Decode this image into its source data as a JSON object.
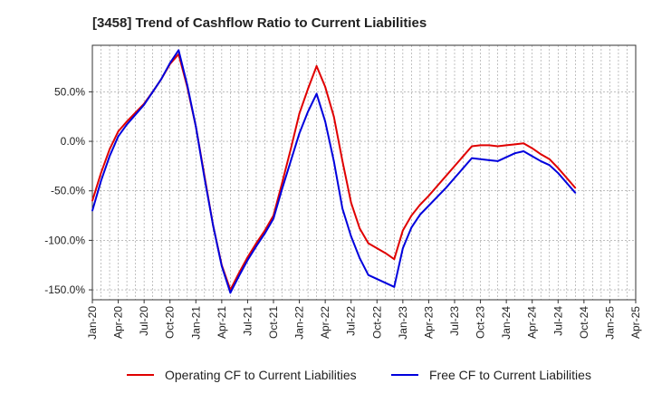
{
  "chart_data": {
    "type": "line",
    "title": "[3458]  Trend of Cashflow Ratio to Current Liabilities",
    "xlabel": "",
    "ylabel": "",
    "ylim": [
      -160,
      97
    ],
    "y_ticks": [
      50,
      0,
      -50,
      -100,
      -150
    ],
    "y_tick_labels": [
      "50.0%",
      "0.0%",
      "-50.0%",
      "-100.0%",
      "-150.0%"
    ],
    "x_tick_labels": [
      "Jan-20",
      "Apr-20",
      "Jul-20",
      "Oct-20",
      "Jan-21",
      "Apr-21",
      "Jul-21",
      "Oct-21",
      "Jan-22",
      "Apr-22",
      "Jul-22",
      "Oct-22",
      "Jan-23",
      "Apr-23",
      "Jul-23",
      "Oct-23",
      "Jan-24",
      "Apr-24",
      "Jul-24",
      "Oct-24",
      "Jan-25",
      "Apr-25"
    ],
    "grid": true,
    "legend_position": "bottom",
    "series": [
      {
        "name": "Operating CF to Current Liabilities",
        "color": "#e00000",
        "points": [
          [
            "2020-01",
            -60
          ],
          [
            "2020-02",
            -32
          ],
          [
            "2020-03",
            -8
          ],
          [
            "2020-04",
            10
          ],
          [
            "2020-05",
            20
          ],
          [
            "2020-06",
            29
          ],
          [
            "2020-07",
            38
          ],
          [
            "2020-08",
            50
          ],
          [
            "2020-09",
            63
          ],
          [
            "2020-10",
            78
          ],
          [
            "2020-11",
            88
          ],
          [
            "2020-12",
            55
          ],
          [
            "2021-01",
            15
          ],
          [
            "2021-02",
            -35
          ],
          [
            "2021-03",
            -85
          ],
          [
            "2021-04",
            -125
          ],
          [
            "2021-05",
            -150
          ],
          [
            "2021-06",
            -133
          ],
          [
            "2021-07",
            -117
          ],
          [
            "2021-08",
            -103
          ],
          [
            "2021-09",
            -90
          ],
          [
            "2021-10",
            -75
          ],
          [
            "2021-11",
            -42
          ],
          [
            "2021-12",
            -8
          ],
          [
            "2022-01",
            28
          ],
          [
            "2022-02",
            53
          ],
          [
            "2022-03",
            76
          ],
          [
            "2022-04",
            55
          ],
          [
            "2022-05",
            25
          ],
          [
            "2022-06",
            -20
          ],
          [
            "2022-07",
            -62
          ],
          [
            "2022-08",
            -88
          ],
          [
            "2022-09",
            -103
          ],
          [
            "2022-10",
            -108
          ],
          [
            "2022-11",
            -113
          ],
          [
            "2022-12",
            -119
          ],
          [
            "2023-01",
            -90
          ],
          [
            "2023-02",
            -75
          ],
          [
            "2023-03",
            -64
          ],
          [
            "2023-04",
            -55
          ],
          [
            "2023-05",
            -45
          ],
          [
            "2023-06",
            -35
          ],
          [
            "2023-07",
            -25
          ],
          [
            "2023-08",
            -15
          ],
          [
            "2023-09",
            -5
          ],
          [
            "2023-10",
            -4
          ],
          [
            "2023-11",
            -4
          ],
          [
            "2023-12",
            -5
          ],
          [
            "2024-01",
            -4
          ],
          [
            "2024-02",
            -3
          ],
          [
            "2024-03",
            -2
          ],
          [
            "2024-04",
            -7
          ],
          [
            "2024-05",
            -13
          ],
          [
            "2024-06",
            -18
          ],
          [
            "2024-07",
            -27
          ],
          [
            "2024-08",
            -37
          ],
          [
            "2024-09",
            -47
          ]
        ]
      },
      {
        "name": "Free CF to Current Liabilities",
        "color": "#0000dd",
        "points": [
          [
            "2020-01",
            -70
          ],
          [
            "2020-02",
            -40
          ],
          [
            "2020-03",
            -15
          ],
          [
            "2020-04",
            5
          ],
          [
            "2020-05",
            17
          ],
          [
            "2020-06",
            27
          ],
          [
            "2020-07",
            37
          ],
          [
            "2020-08",
            50
          ],
          [
            "2020-09",
            63
          ],
          [
            "2020-10",
            79
          ],
          [
            "2020-11",
            92
          ],
          [
            "2020-12",
            57
          ],
          [
            "2021-01",
            15
          ],
          [
            "2021-02",
            -37
          ],
          [
            "2021-03",
            -85
          ],
          [
            "2021-04",
            -126
          ],
          [
            "2021-05",
            -153
          ],
          [
            "2021-06",
            -136
          ],
          [
            "2021-07",
            -120
          ],
          [
            "2021-08",
            -106
          ],
          [
            "2021-09",
            -93
          ],
          [
            "2021-10",
            -78
          ],
          [
            "2021-11",
            -48
          ],
          [
            "2021-12",
            -20
          ],
          [
            "2022-01",
            8
          ],
          [
            "2022-02",
            30
          ],
          [
            "2022-03",
            48
          ],
          [
            "2022-04",
            20
          ],
          [
            "2022-05",
            -20
          ],
          [
            "2022-06",
            -68
          ],
          [
            "2022-07",
            -96
          ],
          [
            "2022-08",
            -118
          ],
          [
            "2022-09",
            -135
          ],
          [
            "2022-10",
            -139
          ],
          [
            "2022-11",
            -143
          ],
          [
            "2022-12",
            -147
          ],
          [
            "2023-01",
            -108
          ],
          [
            "2023-02",
            -87
          ],
          [
            "2023-03",
            -74
          ],
          [
            "2023-04",
            -65
          ],
          [
            "2023-05",
            -56
          ],
          [
            "2023-06",
            -47
          ],
          [
            "2023-07",
            -37
          ],
          [
            "2023-08",
            -27
          ],
          [
            "2023-09",
            -17
          ],
          [
            "2023-10",
            -18
          ],
          [
            "2023-11",
            -19
          ],
          [
            "2023-12",
            -20
          ],
          [
            "2024-01",
            -16
          ],
          [
            "2024-02",
            -12
          ],
          [
            "2024-03",
            -10
          ],
          [
            "2024-04",
            -15
          ],
          [
            "2024-05",
            -20
          ],
          [
            "2024-06",
            -24
          ],
          [
            "2024-07",
            -32
          ],
          [
            "2024-08",
            -42
          ],
          [
            "2024-09",
            -52
          ]
        ]
      }
    ]
  }
}
